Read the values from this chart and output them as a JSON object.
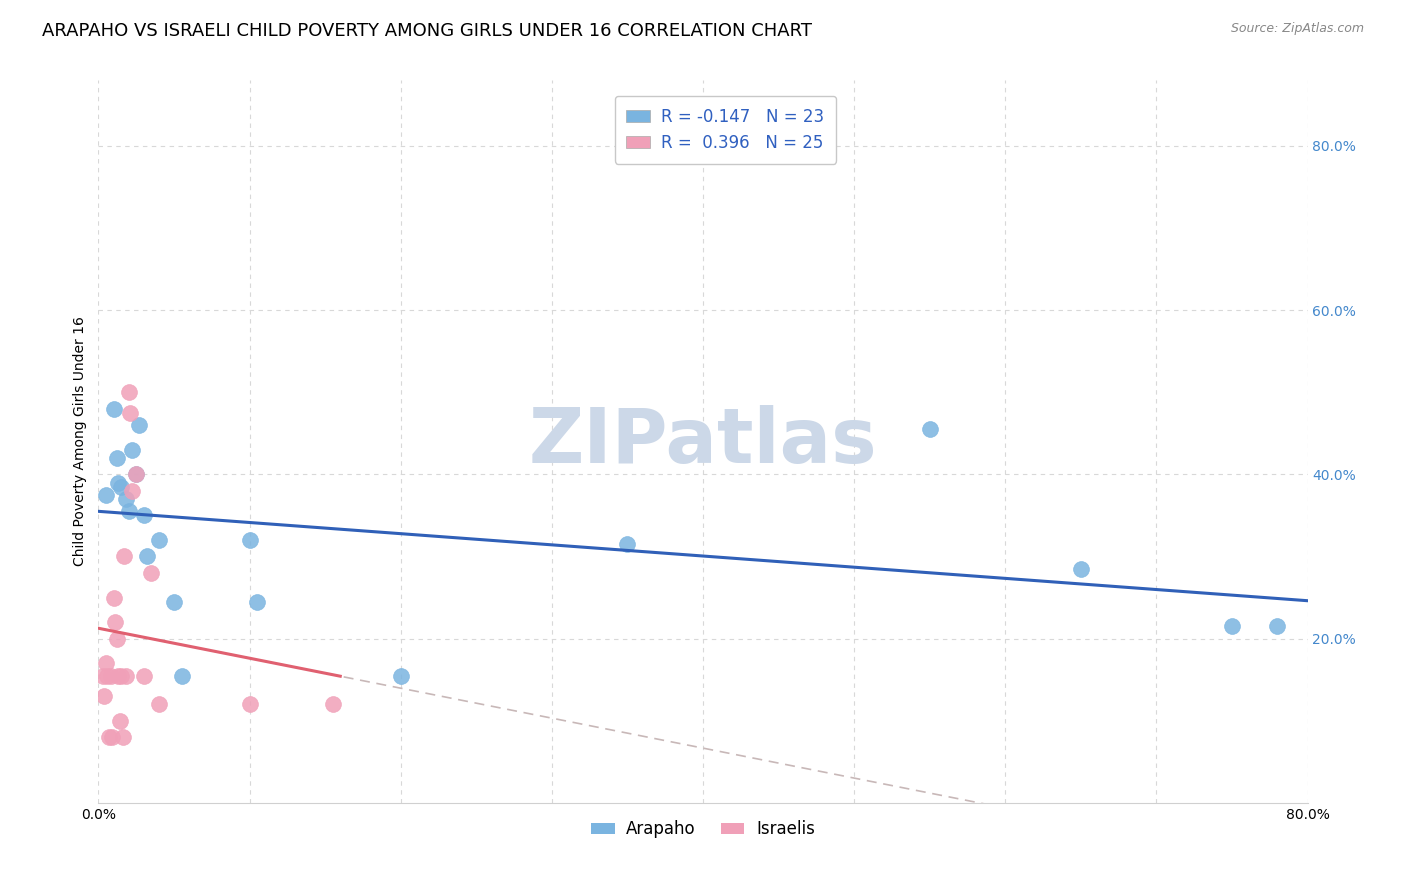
{
  "title": "ARAPAHO VS ISRAELI CHILD POVERTY AMONG GIRLS UNDER 16 CORRELATION CHART",
  "source": "Source: ZipAtlas.com",
  "ylabel": "Child Poverty Among Girls Under 16",
  "xlim": [
    0.0,
    0.8
  ],
  "ylim": [
    0.0,
    0.88
  ],
  "xticks": [
    0.0,
    0.1,
    0.2,
    0.3,
    0.4,
    0.5,
    0.6,
    0.7,
    0.8
  ],
  "xticklabels": [
    "0.0%",
    "",
    "",
    "",
    "",
    "",
    "",
    "",
    "80.0%"
  ],
  "ytick_positions": [
    0.2,
    0.4,
    0.6,
    0.8
  ],
  "ytick_labels": [
    "20.0%",
    "40.0%",
    "60.0%",
    "80.0%"
  ],
  "arapaho_x": [
    0.005,
    0.01,
    0.012,
    0.013,
    0.015,
    0.018,
    0.02,
    0.022,
    0.025,
    0.027,
    0.03,
    0.032,
    0.04,
    0.05,
    0.055,
    0.1,
    0.105,
    0.2,
    0.35,
    0.55,
    0.65,
    0.75,
    0.78
  ],
  "arapaho_y": [
    0.375,
    0.48,
    0.42,
    0.39,
    0.385,
    0.37,
    0.355,
    0.43,
    0.4,
    0.46,
    0.35,
    0.3,
    0.32,
    0.245,
    0.155,
    0.32,
    0.245,
    0.155,
    0.315,
    0.455,
    0.285,
    0.215,
    0.215
  ],
  "israelis_x": [
    0.003,
    0.004,
    0.005,
    0.006,
    0.007,
    0.008,
    0.009,
    0.01,
    0.011,
    0.012,
    0.013,
    0.014,
    0.015,
    0.016,
    0.017,
    0.018,
    0.02,
    0.021,
    0.022,
    0.025,
    0.03,
    0.035,
    0.04,
    0.1,
    0.155
  ],
  "israelis_y": [
    0.155,
    0.13,
    0.17,
    0.155,
    0.08,
    0.155,
    0.08,
    0.25,
    0.22,
    0.2,
    0.155,
    0.1,
    0.155,
    0.08,
    0.3,
    0.155,
    0.5,
    0.475,
    0.38,
    0.4,
    0.155,
    0.28,
    0.12,
    0.12,
    0.12
  ],
  "arapaho_R": -0.147,
  "israelis_R": 0.396,
  "arapaho_color": "#7ab4e0",
  "israelis_color": "#f0a0b8",
  "arapaho_line_color": "#3060b8",
  "israelis_line_color": "#e06070",
  "diag_line_color": "#c8b8b8",
  "legend_arapaho_R": "-0.147",
  "legend_arapaho_N": "23",
  "legend_israelis_R": "0.396",
  "legend_israelis_N": "25",
  "legend_label_arapaho": "Arapaho",
  "legend_label_israelis": "Israelis",
  "watermark": "ZIPatlas",
  "watermark_zip_color": "#c0d0e8",
  "watermark_atlas_color": "#d0c0c8",
  "title_fontsize": 13,
  "axis_label_fontsize": 10,
  "tick_fontsize": 10,
  "legend_fontsize": 12
}
